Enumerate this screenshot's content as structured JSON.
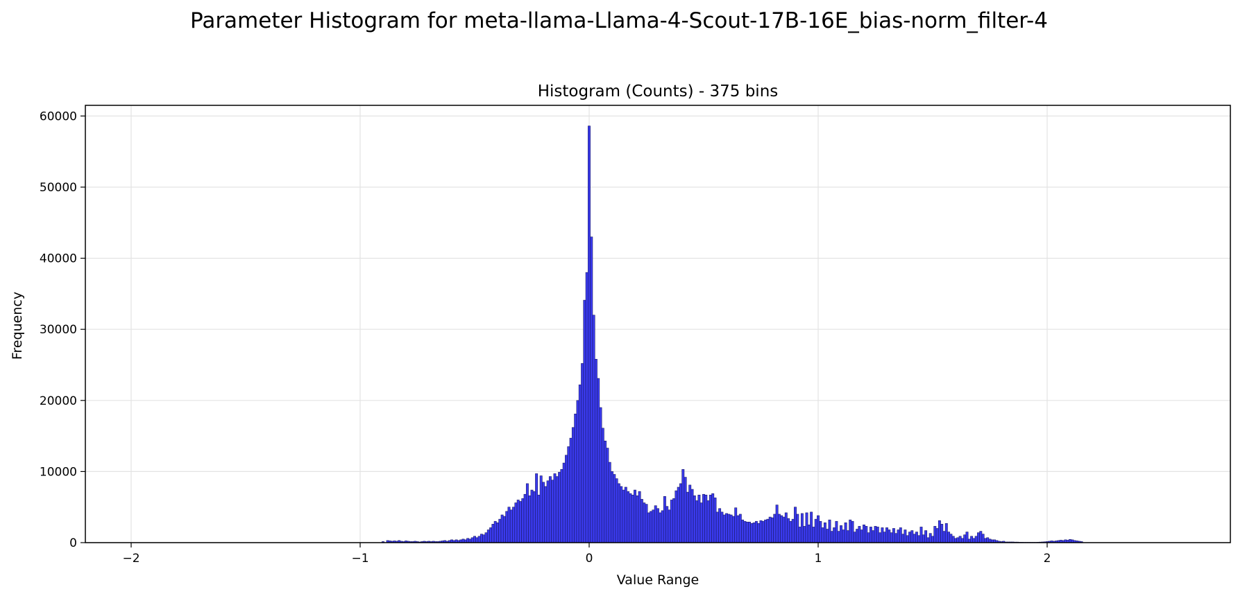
{
  "suptitle": "Parameter Histogram for meta-llama-Llama-4-Scout-17B-16E_bias-norm_filter-4",
  "chart_data": {
    "type": "bar",
    "title": "Histogram (Counts) - 375 bins",
    "xlabel": "Value Range",
    "ylabel": "Frequency",
    "xlim": [
      -2.2,
      2.8
    ],
    "ylim": [
      0,
      61500
    ],
    "xticks": [
      -2,
      -1,
      0,
      1,
      2
    ],
    "xtick_labels": [
      "−2",
      "−1",
      "0",
      "1",
      "2"
    ],
    "yticks": [
      0,
      10000,
      20000,
      30000,
      40000,
      50000,
      60000
    ],
    "ytick_labels": [
      "0",
      "10000",
      "20000",
      "30000",
      "40000",
      "50000",
      "60000"
    ],
    "grid": true,
    "bar_color": "#3a3aee",
    "edge_color": "#1a1a66",
    "bin_width": 0.01,
    "points": [
      [
        -0.9,
        150
      ],
      [
        -0.88,
        300
      ],
      [
        -0.87,
        250
      ],
      [
        -0.86,
        200
      ],
      [
        -0.85,
        250
      ],
      [
        -0.84,
        200
      ],
      [
        -0.83,
        300
      ],
      [
        -0.82,
        200
      ],
      [
        -0.81,
        150
      ],
      [
        -0.8,
        250
      ],
      [
        -0.79,
        200
      ],
      [
        -0.78,
        150
      ],
      [
        -0.77,
        150
      ],
      [
        -0.76,
        200
      ],
      [
        -0.75,
        150
      ],
      [
        -0.74,
        100
      ],
      [
        -0.73,
        150
      ],
      [
        -0.72,
        200
      ],
      [
        -0.71,
        150
      ],
      [
        -0.7,
        200
      ],
      [
        -0.69,
        150
      ],
      [
        -0.68,
        200
      ],
      [
        -0.67,
        150
      ],
      [
        -0.66,
        150
      ],
      [
        -0.65,
        200
      ],
      [
        -0.64,
        250
      ],
      [
        -0.63,
        300
      ],
      [
        -0.62,
        200
      ],
      [
        -0.61,
        300
      ],
      [
        -0.6,
        400
      ],
      [
        -0.59,
        300
      ],
      [
        -0.58,
        400
      ],
      [
        -0.57,
        300
      ],
      [
        -0.56,
        400
      ],
      [
        -0.55,
        500
      ],
      [
        -0.54,
        400
      ],
      [
        -0.53,
        600
      ],
      [
        -0.52,
        500
      ],
      [
        -0.51,
        700
      ],
      [
        -0.5,
        900
      ],
      [
        -0.49,
        700
      ],
      [
        -0.48,
        900
      ],
      [
        -0.47,
        1200
      ],
      [
        -0.46,
        1100
      ],
      [
        -0.45,
        1400
      ],
      [
        -0.44,
        1800
      ],
      [
        -0.43,
        2100
      ],
      [
        -0.42,
        2600
      ],
      [
        -0.41,
        3000
      ],
      [
        -0.4,
        2800
      ],
      [
        -0.39,
        3300
      ],
      [
        -0.38,
        3900
      ],
      [
        -0.37,
        3700
      ],
      [
        -0.36,
        4400
      ],
      [
        -0.35,
        5000
      ],
      [
        -0.34,
        4600
      ],
      [
        -0.33,
        5000
      ],
      [
        -0.32,
        5600
      ],
      [
        -0.31,
        6000
      ],
      [
        -0.3,
        5800
      ],
      [
        -0.29,
        6200
      ],
      [
        -0.28,
        6800
      ],
      [
        -0.27,
        8300
      ],
      [
        -0.26,
        6600
      ],
      [
        -0.25,
        7400
      ],
      [
        -0.24,
        7200
      ],
      [
        -0.23,
        9700
      ],
      [
        -0.22,
        6700
      ],
      [
        -0.21,
        9400
      ],
      [
        -0.2,
        8500
      ],
      [
        -0.19,
        7900
      ],
      [
        -0.18,
        8700
      ],
      [
        -0.17,
        9300
      ],
      [
        -0.16,
        8800
      ],
      [
        -0.15,
        9700
      ],
      [
        -0.14,
        9300
      ],
      [
        -0.13,
        9900
      ],
      [
        -0.12,
        10300
      ],
      [
        -0.11,
        11200
      ],
      [
        -0.1,
        12300
      ],
      [
        -0.09,
        13500
      ],
      [
        -0.08,
        14700
      ],
      [
        -0.07,
        16200
      ],
      [
        -0.06,
        18100
      ],
      [
        -0.05,
        20000
      ],
      [
        -0.04,
        22200
      ],
      [
        -0.03,
        25200
      ],
      [
        -0.02,
        34100
      ],
      [
        -0.01,
        38000
      ],
      [
        0.0,
        58600
      ],
      [
        0.01,
        43000
      ],
      [
        0.02,
        32000
      ],
      [
        0.03,
        25800
      ],
      [
        0.04,
        23100
      ],
      [
        0.05,
        19000
      ],
      [
        0.06,
        16100
      ],
      [
        0.07,
        14300
      ],
      [
        0.08,
        13300
      ],
      [
        0.09,
        11300
      ],
      [
        0.1,
        10000
      ],
      [
        0.11,
        9600
      ],
      [
        0.12,
        9000
      ],
      [
        0.13,
        8300
      ],
      [
        0.14,
        7900
      ],
      [
        0.15,
        7400
      ],
      [
        0.16,
        7800
      ],
      [
        0.17,
        7200
      ],
      [
        0.18,
        6900
      ],
      [
        0.19,
        6700
      ],
      [
        0.2,
        7400
      ],
      [
        0.21,
        6600
      ],
      [
        0.22,
        7200
      ],
      [
        0.23,
        6100
      ],
      [
        0.24,
        5600
      ],
      [
        0.25,
        5400
      ],
      [
        0.26,
        4200
      ],
      [
        0.27,
        4400
      ],
      [
        0.28,
        4600
      ],
      [
        0.29,
        5200
      ],
      [
        0.3,
        4800
      ],
      [
        0.31,
        4200
      ],
      [
        0.32,
        4500
      ],
      [
        0.33,
        6500
      ],
      [
        0.34,
        5100
      ],
      [
        0.35,
        4600
      ],
      [
        0.36,
        6000
      ],
      [
        0.37,
        6200
      ],
      [
        0.38,
        7300
      ],
      [
        0.39,
        7800
      ],
      [
        0.4,
        8300
      ],
      [
        0.41,
        10300
      ],
      [
        0.42,
        9200
      ],
      [
        0.43,
        7100
      ],
      [
        0.44,
        8100
      ],
      [
        0.45,
        7500
      ],
      [
        0.46,
        6600
      ],
      [
        0.47,
        5900
      ],
      [
        0.48,
        6700
      ],
      [
        0.49,
        5600
      ],
      [
        0.5,
        6800
      ],
      [
        0.51,
        6700
      ],
      [
        0.52,
        5900
      ],
      [
        0.53,
        6700
      ],
      [
        0.54,
        6900
      ],
      [
        0.55,
        6300
      ],
      [
        0.56,
        4300
      ],
      [
        0.57,
        4800
      ],
      [
        0.58,
        4300
      ],
      [
        0.59,
        3900
      ],
      [
        0.6,
        4100
      ],
      [
        0.61,
        4000
      ],
      [
        0.62,
        3900
      ],
      [
        0.63,
        3700
      ],
      [
        0.64,
        4900
      ],
      [
        0.65,
        3800
      ],
      [
        0.66,
        4000
      ],
      [
        0.67,
        3200
      ],
      [
        0.68,
        3000
      ],
      [
        0.69,
        2900
      ],
      [
        0.7,
        2900
      ],
      [
        0.71,
        2700
      ],
      [
        0.72,
        2800
      ],
      [
        0.73,
        3000
      ],
      [
        0.74,
        2700
      ],
      [
        0.75,
        3100
      ],
      [
        0.76,
        3000
      ],
      [
        0.77,
        3200
      ],
      [
        0.78,
        3300
      ],
      [
        0.79,
        3600
      ],
      [
        0.8,
        3500
      ],
      [
        0.81,
        4000
      ],
      [
        0.82,
        5300
      ],
      [
        0.83,
        4000
      ],
      [
        0.84,
        3800
      ],
      [
        0.85,
        3600
      ],
      [
        0.86,
        4200
      ],
      [
        0.87,
        3400
      ],
      [
        0.88,
        3000
      ],
      [
        0.89,
        3300
      ],
      [
        0.9,
        5000
      ],
      [
        0.91,
        4000
      ],
      [
        0.92,
        2200
      ],
      [
        0.93,
        4100
      ],
      [
        0.94,
        2300
      ],
      [
        0.95,
        4200
      ],
      [
        0.96,
        2500
      ],
      [
        0.97,
        4300
      ],
      [
        0.98,
        2200
      ],
      [
        0.99,
        3300
      ],
      [
        1.0,
        3800
      ],
      [
        1.01,
        3000
      ],
      [
        1.02,
        2100
      ],
      [
        1.03,
        2800
      ],
      [
        1.04,
        1900
      ],
      [
        1.05,
        3200
      ],
      [
        1.06,
        1600
      ],
      [
        1.07,
        2100
      ],
      [
        1.08,
        3000
      ],
      [
        1.09,
        1600
      ],
      [
        1.1,
        2400
      ],
      [
        1.11,
        1800
      ],
      [
        1.12,
        2800
      ],
      [
        1.13,
        1700
      ],
      [
        1.14,
        3200
      ],
      [
        1.15,
        3000
      ],
      [
        1.16,
        1500
      ],
      [
        1.17,
        1900
      ],
      [
        1.18,
        2300
      ],
      [
        1.19,
        1800
      ],
      [
        1.2,
        2500
      ],
      [
        1.21,
        2300
      ],
      [
        1.22,
        1400
      ],
      [
        1.23,
        2200
      ],
      [
        1.24,
        1700
      ],
      [
        1.25,
        2300
      ],
      [
        1.26,
        2200
      ],
      [
        1.27,
        1400
      ],
      [
        1.28,
        2100
      ],
      [
        1.29,
        1500
      ],
      [
        1.3,
        2100
      ],
      [
        1.31,
        1800
      ],
      [
        1.32,
        1400
      ],
      [
        1.33,
        2000
      ],
      [
        1.34,
        1300
      ],
      [
        1.35,
        1800
      ],
      [
        1.36,
        2100
      ],
      [
        1.37,
        1200
      ],
      [
        1.38,
        1800
      ],
      [
        1.39,
        1000
      ],
      [
        1.4,
        1500
      ],
      [
        1.41,
        1700
      ],
      [
        1.42,
        1200
      ],
      [
        1.43,
        1500
      ],
      [
        1.44,
        1000
      ],
      [
        1.45,
        2200
      ],
      [
        1.46,
        1100
      ],
      [
        1.47,
        1700
      ],
      [
        1.48,
        700
      ],
      [
        1.49,
        1300
      ],
      [
        1.5,
        900
      ],
      [
        1.51,
        2300
      ],
      [
        1.52,
        2000
      ],
      [
        1.53,
        3100
      ],
      [
        1.54,
        2600
      ],
      [
        1.55,
        1600
      ],
      [
        1.56,
        2700
      ],
      [
        1.57,
        1500
      ],
      [
        1.58,
        1200
      ],
      [
        1.59,
        900
      ],
      [
        1.6,
        600
      ],
      [
        1.61,
        700
      ],
      [
        1.62,
        900
      ],
      [
        1.63,
        600
      ],
      [
        1.64,
        1100
      ],
      [
        1.65,
        1500
      ],
      [
        1.66,
        500
      ],
      [
        1.67,
        900
      ],
      [
        1.68,
        600
      ],
      [
        1.69,
        900
      ],
      [
        1.7,
        1400
      ],
      [
        1.71,
        1600
      ],
      [
        1.72,
        1200
      ],
      [
        1.73,
        600
      ],
      [
        1.74,
        700
      ],
      [
        1.75,
        500
      ],
      [
        1.76,
        400
      ],
      [
        1.77,
        400
      ],
      [
        1.78,
        300
      ],
      [
        1.79,
        200
      ],
      [
        1.8,
        150
      ],
      [
        1.81,
        200
      ],
      [
        1.82,
        100
      ],
      [
        1.83,
        100
      ],
      [
        1.84,
        100
      ],
      [
        1.85,
        100
      ],
      [
        1.86,
        80
      ],
      [
        1.87,
        80
      ],
      [
        1.88,
        60
      ],
      [
        1.89,
        60
      ],
      [
        1.9,
        50
      ],
      [
        1.91,
        50
      ],
      [
        1.92,
        50
      ],
      [
        1.93,
        50
      ],
      [
        1.94,
        50
      ],
      [
        1.95,
        50
      ],
      [
        1.96,
        60
      ],
      [
        1.97,
        80
      ],
      [
        1.98,
        100
      ],
      [
        1.99,
        120
      ],
      [
        2.0,
        150
      ],
      [
        2.01,
        200
      ],
      [
        2.02,
        250
      ],
      [
        2.03,
        200
      ],
      [
        2.04,
        250
      ],
      [
        2.05,
        300
      ],
      [
        2.06,
        350
      ],
      [
        2.07,
        300
      ],
      [
        2.08,
        400
      ],
      [
        2.09,
        350
      ],
      [
        2.1,
        450
      ],
      [
        2.11,
        400
      ],
      [
        2.12,
        300
      ],
      [
        2.13,
        250
      ],
      [
        2.14,
        200
      ],
      [
        2.15,
        150
      ]
    ]
  }
}
